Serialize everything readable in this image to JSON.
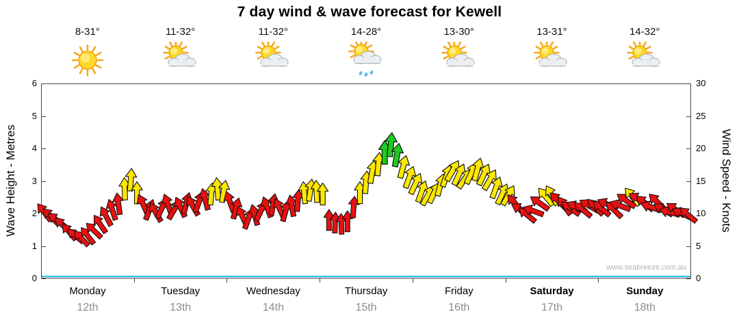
{
  "title": "7 day wind & wave forecast for Kewell",
  "watermark": "www.seabreeze.com.au",
  "days": [
    {
      "name": "Monday",
      "date": "12th",
      "temp": "8-31°",
      "icon": "sunny",
      "bold": false
    },
    {
      "name": "Tuesday",
      "date": "13th",
      "temp": "11-32°",
      "icon": "sun-cloud",
      "bold": false
    },
    {
      "name": "Wednesday",
      "date": "14th",
      "temp": "11-32°",
      "icon": "sun-cloud",
      "bold": false
    },
    {
      "name": "Thursday",
      "date": "15th",
      "temp": "14-28°",
      "icon": "sun-cloud-rain",
      "bold": false
    },
    {
      "name": "Friday",
      "date": "16th",
      "temp": "13-30°",
      "icon": "sun-cloud",
      "bold": false
    },
    {
      "name": "Saturday",
      "date": "17th",
      "temp": "13-31°",
      "icon": "sun-cloud",
      "bold": true
    },
    {
      "name": "Sunday",
      "date": "18th",
      "temp": "14-32°",
      "icon": "sun-cloud",
      "bold": true
    }
  ],
  "chart_data": {
    "type": "scatter",
    "subtype": "wind-arrow-forecast",
    "title": "7 day wind & wave forecast for Kewell",
    "left_axis": {
      "label": "Wave Height - Metres",
      "min": 0,
      "max": 6,
      "ticks": [
        0,
        1,
        2,
        3,
        4,
        5,
        6
      ]
    },
    "right_axis": {
      "label": "Wind Speed - Knots",
      "min": 0,
      "max": 30,
      "ticks": [
        0,
        5,
        10,
        15,
        20,
        25,
        30
      ]
    },
    "x_axis": {
      "days": [
        "Monday",
        "Tuesday",
        "Wednesday",
        "Thursday",
        "Friday",
        "Saturday",
        "Sunday"
      ],
      "dates": [
        "12th",
        "13th",
        "14th",
        "15th",
        "16th",
        "17th",
        "18th"
      ]
    },
    "grid": false,
    "baseline_color": "#1cc3dd",
    "speed_colors": [
      {
        "min_knots": 0,
        "color": "#e81010",
        "label": "light"
      },
      {
        "min_knots": 12.5,
        "color": "#ffe800",
        "label": "moderate"
      },
      {
        "min_knots": 18.5,
        "color": "#1ecb1e",
        "label": "fresh"
      }
    ],
    "point_columns": [
      "x_fraction",
      "wind_speed_knots",
      "direction_deg"
    ],
    "points": [
      [
        0.0048,
        10.2,
        -38
      ],
      [
        0.0143,
        9.6,
        -45
      ],
      [
        0.0238,
        9.0,
        -52
      ],
      [
        0.0333,
        8.2,
        -46
      ],
      [
        0.0429,
        7.2,
        -40
      ],
      [
        0.0524,
        6.6,
        -50
      ],
      [
        0.0619,
        6.2,
        -44
      ],
      [
        0.0714,
        6.6,
        -38
      ],
      [
        0.081,
        7.4,
        -46
      ],
      [
        0.0905,
        8.4,
        -34
      ],
      [
        0.1,
        9.6,
        -28
      ],
      [
        0.1095,
        10.6,
        -18
      ],
      [
        0.119,
        11.5,
        -8
      ],
      [
        0.1286,
        13.8,
        -2
      ],
      [
        0.1381,
        15.2,
        4
      ],
      [
        0.1476,
        13.2,
        0
      ],
      [
        0.1571,
        11.4,
        -25
      ],
      [
        0.1667,
        10.6,
        20
      ],
      [
        0.1762,
        10.2,
        -30
      ],
      [
        0.1857,
        10.8,
        25
      ],
      [
        0.1952,
        11.4,
        -20
      ],
      [
        0.2048,
        10.6,
        30
      ],
      [
        0.2143,
        11.0,
        -25
      ],
      [
        0.2238,
        11.6,
        15
      ],
      [
        0.2333,
        11.2,
        -30
      ],
      [
        0.2429,
        11.8,
        20
      ],
      [
        0.2524,
        12.2,
        -15
      ],
      [
        0.2619,
        13.0,
        5
      ],
      [
        0.2714,
        13.8,
        -5
      ],
      [
        0.281,
        13.4,
        10
      ],
      [
        0.2905,
        11.8,
        -20
      ],
      [
        0.3,
        10.8,
        15
      ],
      [
        0.3095,
        9.6,
        -25
      ],
      [
        0.319,
        9.2,
        20
      ],
      [
        0.3286,
        9.8,
        -15
      ],
      [
        0.3381,
        10.4,
        25
      ],
      [
        0.3476,
        11.0,
        -20
      ],
      [
        0.3571,
        11.4,
        10
      ],
      [
        0.3667,
        10.8,
        -25
      ],
      [
        0.3762,
        10.4,
        15
      ],
      [
        0.3857,
        11.2,
        -10
      ],
      [
        0.3952,
        12.0,
        5
      ],
      [
        0.4048,
        13.2,
        -5
      ],
      [
        0.4143,
        13.6,
        8
      ],
      [
        0.4238,
        13.4,
        -3
      ],
      [
        0.4333,
        13.0,
        0
      ],
      [
        0.4429,
        9.0,
        0
      ],
      [
        0.4524,
        8.6,
        2
      ],
      [
        0.4619,
        8.4,
        -2
      ],
      [
        0.4714,
        8.8,
        0
      ],
      [
        0.481,
        11.0,
        5
      ],
      [
        0.4905,
        13.2,
        0
      ],
      [
        0.5,
        14.8,
        5
      ],
      [
        0.5095,
        16.4,
        10
      ],
      [
        0.519,
        17.6,
        5
      ],
      [
        0.5286,
        19.4,
        0
      ],
      [
        0.5381,
        20.6,
        5
      ],
      [
        0.5476,
        19.0,
        10
      ],
      [
        0.5571,
        17.2,
        15
      ],
      [
        0.5667,
        15.6,
        20
      ],
      [
        0.5762,
        14.6,
        25
      ],
      [
        0.5857,
        13.4,
        20
      ],
      [
        0.5952,
        12.8,
        30
      ],
      [
        0.6048,
        13.2,
        25
      ],
      [
        0.6143,
        14.4,
        15
      ],
      [
        0.6238,
        15.8,
        20
      ],
      [
        0.6333,
        16.6,
        30
      ],
      [
        0.6429,
        16.0,
        25
      ],
      [
        0.6524,
        15.4,
        35
      ],
      [
        0.6619,
        16.2,
        25
      ],
      [
        0.6714,
        16.8,
        15
      ],
      [
        0.681,
        16.0,
        25
      ],
      [
        0.6905,
        15.2,
        30
      ],
      [
        0.7,
        14.0,
        20
      ],
      [
        0.7095,
        13.0,
        25
      ],
      [
        0.719,
        12.8,
        30
      ],
      [
        0.7286,
        11.6,
        -40
      ],
      [
        0.7381,
        10.6,
        -60
      ],
      [
        0.7476,
        9.8,
        -50
      ],
      [
        0.7571,
        10.4,
        -70
      ],
      [
        0.7667,
        11.6,
        -55
      ],
      [
        0.7762,
        12.6,
        -40
      ],
      [
        0.7857,
        12.8,
        -30
      ],
      [
        0.7952,
        12.0,
        -45
      ],
      [
        0.8048,
        11.2,
        -35
      ],
      [
        0.8143,
        10.8,
        -55
      ],
      [
        0.8238,
        11.0,
        -65
      ],
      [
        0.8333,
        10.6,
        -50
      ],
      [
        0.8429,
        11.2,
        -60
      ],
      [
        0.8524,
        11.0,
        -45
      ],
      [
        0.8619,
        10.8,
        -50
      ],
      [
        0.8714,
        11.4,
        -65
      ],
      [
        0.881,
        10.6,
        -45
      ],
      [
        0.8905,
        11.2,
        -70
      ],
      [
        0.9,
        12.0,
        -55
      ],
      [
        0.9095,
        12.6,
        -40
      ],
      [
        0.919,
        12.2,
        -60
      ],
      [
        0.9286,
        11.6,
        -50
      ],
      [
        0.9381,
        11.0,
        -70
      ],
      [
        0.9476,
        11.8,
        -45
      ],
      [
        0.9571,
        10.6,
        -60
      ],
      [
        0.9667,
        10.2,
        -75
      ],
      [
        0.9762,
        10.6,
        -55
      ],
      [
        0.9857,
        10.0,
        -65
      ],
      [
        0.9952,
        9.8,
        -50
      ]
    ]
  }
}
